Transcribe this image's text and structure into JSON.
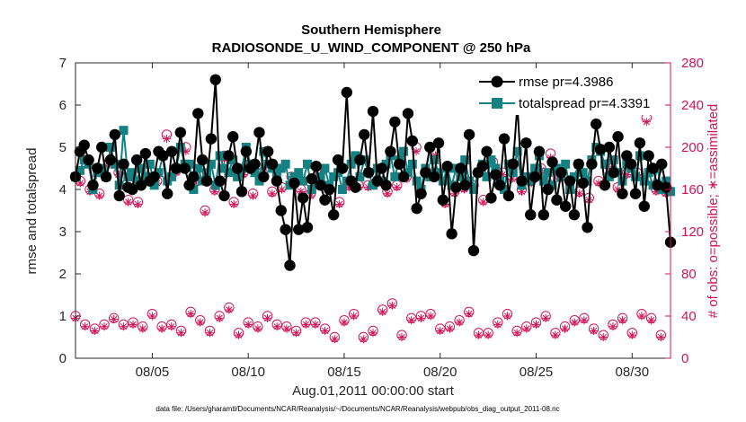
{
  "chart_data": {
    "type": "line",
    "title": "Southern Hemisphere",
    "subtitle": "RADIOSONDE_U_WIND_COMPONENT @ 250 hPa",
    "xlabel": "Aug.01,2011 00:00:00 start",
    "ylabel_left": "rmse and totalspread",
    "ylabel_right": "# of obs: o=possible; ∗=assimilated",
    "xlim": [
      1,
      32
    ],
    "ylim_left": [
      0,
      7
    ],
    "ylim_right": [
      0,
      280
    ],
    "x_ticks": [
      5,
      10,
      15,
      20,
      25,
      30
    ],
    "x_tick_labels": [
      "08/05",
      "08/10",
      "08/15",
      "08/20",
      "08/25",
      "08/30"
    ],
    "y_ticks_left": [
      "0",
      "1",
      "2",
      "3",
      "4",
      "5",
      "6",
      "7"
    ],
    "y_ticks_right": [
      "0",
      "40",
      "80",
      "120",
      "160",
      "200",
      "240",
      "280"
    ],
    "footer": "data file: /Users/gharamti/Documents/NCAR/Reanalysis/~/Documents/NCAR/Reanalysis/webpub/obs_diag_output_2011-08.nc",
    "colors": {
      "rmse": "#000000",
      "spread": "#148282",
      "obs": "#d11458",
      "axis": "#262626"
    },
    "legend_position": "top-right",
    "series": [
      {
        "name": "rmse",
        "legend": "rmse pr=4.3986",
        "values": [
          4.3,
          4.9,
          5.05,
          4.7,
          4.1,
          4.5,
          5.0,
          4.3,
          4.7,
          5.3,
          3.85,
          4.6,
          4.05,
          4.0,
          4.7,
          4.1,
          4.85,
          4.2,
          4.3,
          4.9,
          4.8,
          3.9,
          4.9,
          4.5,
          5.35,
          4.5,
          4.1,
          4.3,
          5.8,
          4.7,
          4.2,
          5.2,
          6.6,
          4.2,
          3.85,
          4.8,
          5.25,
          4.5,
          3.95,
          4.9,
          4.5,
          4.6,
          5.35,
          4.3,
          4.9,
          4.6,
          4.2,
          3.5,
          3.05,
          2.2,
          4.15,
          3.05,
          3.8,
          3.1,
          4.25,
          4.55,
          4.1,
          3.75,
          4.0,
          3.4,
          4.7,
          4.5,
          6.3,
          4.2,
          4.05,
          4.7,
          5.3,
          4.4,
          5.85,
          4.2,
          4.5,
          4.1,
          4.9,
          5.6,
          4.6,
          4.3,
          5.8,
          5.15,
          3.55,
          3.9,
          4.4,
          5.0,
          4.3,
          5.1,
          3.75,
          4.55,
          2.95,
          4.05,
          4.5,
          4.1,
          5.3,
          2.55,
          4.4,
          4.55,
          4.9,
          3.8,
          4.35,
          4.1,
          5.2,
          3.85,
          4.6,
          6.0,
          4.2,
          5.1,
          3.4,
          4.3,
          4.9,
          3.4,
          4.0,
          4.65,
          3.75,
          4.4,
          3.6,
          4.2,
          3.4,
          4.6,
          4.15,
          3.1,
          4.6,
          5.55,
          4.95,
          4.1,
          5.0,
          4.4,
          5.25,
          3.9,
          4.8,
          4.6,
          3.9,
          5.1,
          3.6,
          4.8,
          4.5,
          4.1,
          4.6,
          4.05,
          2.75
        ]
      },
      {
        "name": "totalspread",
        "legend": "totalspread pr=4.3391",
        "values": [
          4.3,
          4.45,
          4.7,
          4.6,
          4.0,
          4.4,
          4.5,
          4.3,
          5.0,
          4.6,
          4.1,
          5.4,
          4.3,
          4.4,
          4.2,
          4.5,
          4.3,
          4.6,
          4.1,
          4.4,
          4.8,
          4.2,
          4.3,
          4.5,
          5.0,
          4.6,
          4.6,
          4.0,
          4.5,
          4.2,
          4.4,
          4.6,
          4.1,
          4.8,
          4.5,
          4.4,
          4.7,
          4.3,
          4.5,
          5.0,
          4.6,
          4.4,
          4.2,
          4.9,
          4.6,
          4.5,
          4.3,
          4.5,
          4.6,
          4.1,
          4.3,
          4.4,
          4.2,
          4.6,
          4.0,
          4.2,
          4.3,
          4.5,
          4.1,
          4.3,
          4.4,
          4.0,
          4.2,
          4.6,
          4.8,
          4.3,
          4.7,
          4.4,
          4.1,
          4.5,
          4.2,
          4.6,
          4.8,
          4.3,
          4.7,
          4.9,
          4.4,
          4.6,
          4.2,
          4.0,
          4.5,
          4.3,
          4.7,
          4.4,
          4.2,
          4.5,
          4.1,
          4.5,
          4.3,
          4.7,
          4.2,
          4.0,
          4.4,
          4.6,
          4.3,
          4.7,
          4.5,
          4.2,
          4.0,
          4.6,
          4.4,
          4.9,
          4.1,
          4.3,
          4.2,
          4.5,
          4.8,
          4.2,
          4.4,
          4.1,
          4.5,
          4.3,
          4.6,
          4.0,
          4.3,
          4.6,
          4.4,
          4.2,
          4.7,
          5.0,
          4.9,
          4.6,
          4.3,
          4.7,
          4.4,
          4.2,
          4.6,
          4.5,
          4.3,
          4.8,
          4.2,
          4.4,
          4.1,
          4.5,
          4.0,
          4.2,
          3.95
        ]
      },
      {
        "name": "obs possible (right axis)",
        "days": [
          1,
          2,
          3,
          4,
          5,
          6,
          7,
          8,
          9,
          10,
          11,
          12,
          13,
          14,
          15,
          16,
          17,
          18,
          19,
          20,
          21,
          22,
          23,
          24,
          25,
          26,
          27,
          28,
          29,
          30,
          31
        ],
        "values_00z": [
          40,
          28,
          38,
          34,
          42,
          32,
          44,
          26,
          48,
          34,
          40,
          30,
          34,
          28,
          36,
          20,
          46,
          22,
          40,
          28,
          36,
          24,
          34,
          26,
          34,
          24,
          36,
          28,
          32,
          24,
          38
        ],
        "values_12z": [
          32,
          32,
          32,
          30,
          30,
          26,
          36,
          40,
          24,
          30,
          32,
          26,
          34,
          20,
          42,
          26,
          52,
          38,
          42,
          30,
          44,
          24,
          42,
          30,
          40,
          30,
          38,
          22,
          38,
          42,
          22
        ],
        "mid_00z": [
          168,
          156,
          176,
          148,
          168,
          178,
          168,
          160,
          148,
          156,
          158,
          172,
          156,
          160,
          164,
          164,
          158,
          172,
          178,
          148,
          162,
          150,
          176,
          160,
          180,
          172,
          158,
          168,
          162,
          176,
          160
        ],
        "mid_12z": [
          160,
          186,
          150,
          170,
          212,
          200,
          140,
          192,
          176,
          176,
          162,
          160,
          176,
          148,
          164,
          168,
          164,
          200,
          196,
          158,
          164,
          186,
          172,
          168,
          194,
          168,
          152,
          184,
          176,
          228,
          158
        ]
      },
      {
        "name": "obs assimilated (right axis)",
        "values_00z": [
          38,
          26,
          37,
          32,
          40,
          30,
          42,
          24,
          46,
          32,
          38,
          28,
          32,
          26,
          34,
          18,
          44,
          20,
          38,
          26,
          34,
          22,
          32,
          24,
          32,
          22,
          34,
          26,
          30,
          22,
          36
        ],
        "values_12z": [
          30,
          30,
          30,
          28,
          28,
          24,
          34,
          38,
          22,
          28,
          30,
          24,
          32,
          18,
          40,
          24,
          50,
          36,
          40,
          28,
          42,
          22,
          40,
          28,
          38,
          28,
          36,
          20,
          36,
          40,
          20
        ],
        "mid_00z": [
          166,
          154,
          174,
          146,
          166,
          176,
          166,
          158,
          146,
          154,
          156,
          170,
          154,
          158,
          162,
          162,
          156,
          170,
          176,
          146,
          160,
          148,
          174,
          158,
          178,
          170,
          156,
          166,
          160,
          174,
          158
        ],
        "mid_12z": [
          158,
          184,
          148,
          168,
          208,
          196,
          138,
          188,
          174,
          174,
          160,
          158,
          174,
          146,
          162,
          166,
          162,
          196,
          192,
          156,
          162,
          184,
          170,
          166,
          190,
          166,
          150,
          182,
          174,
          224,
          156
        ]
      }
    ]
  }
}
